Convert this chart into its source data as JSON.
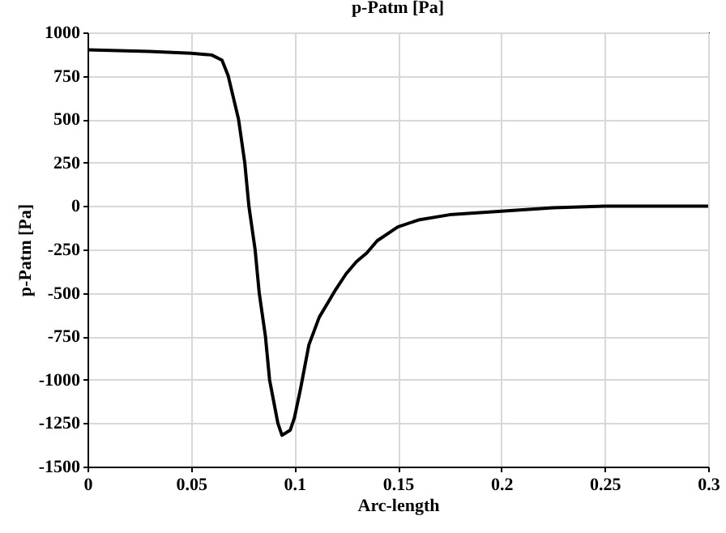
{
  "chart_data": {
    "type": "line",
    "title": "p-Patm [Pa]",
    "xlabel": "Arc-length",
    "ylabel": "p-Patm [Pa]",
    "x": [
      0,
      0.03,
      0.05,
      0.06,
      0.065,
      0.068,
      0.073,
      0.076,
      0.078,
      0.081,
      0.083,
      0.086,
      0.088,
      0.092,
      0.094,
      0.098,
      0.1,
      0.103,
      0.107,
      0.112,
      0.116,
      0.12,
      0.125,
      0.13,
      0.135,
      0.14,
      0.15,
      0.16,
      0.175,
      0.2,
      0.225,
      0.25,
      0.3
    ],
    "series": [
      {
        "color": "#000000",
        "values": [
          900,
          890,
          880,
          870,
          840,
          750,
          500,
          250,
          0,
          -250,
          -500,
          -750,
          -1000,
          -1250,
          -1320,
          -1290,
          -1220,
          -1050,
          -800,
          -640,
          -560,
          -480,
          -390,
          -320,
          -270,
          -200,
          -120,
          -80,
          -50,
          -30,
          -10,
          0,
          0
        ]
      }
    ],
    "xlim": [
      0,
      0.3
    ],
    "xticks": [
      0,
      0.05,
      0.1,
      0.15,
      0.2,
      0.25,
      0.3
    ],
    "ylim": [
      -1500,
      1000
    ],
    "yticks": [
      -1500,
      -1250,
      -1000,
      -750,
      -500,
      -250,
      0,
      250,
      500,
      750,
      1000
    ],
    "grid": true,
    "marker": "none",
    "line_style": "solid"
  }
}
